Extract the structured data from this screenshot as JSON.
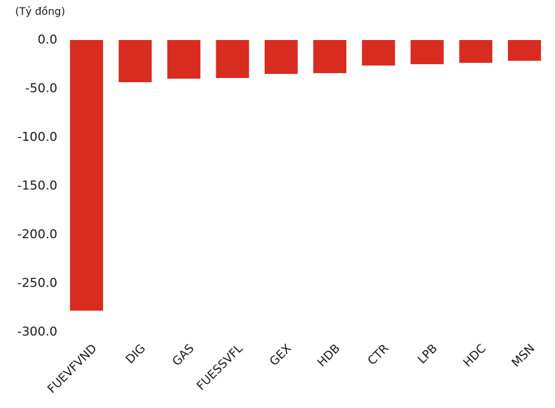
{
  "chart_data": {
    "type": "bar",
    "y_label": "(Tỷ đồng)",
    "categories": [
      "FUEVFVND",
      "DIG",
      "GAS",
      "FUESSVFL",
      "GEX",
      "HDB",
      "CTR",
      "LPB",
      "HDC",
      "MSN"
    ],
    "values": [
      -278,
      -43.3,
      -39.7,
      -39,
      -34.8,
      -34,
      -26.2,
      -24.8,
      -23.4,
      -21.3
    ],
    "color": "#d92c20",
    "ylim": [
      -300,
      0
    ],
    "yticks": [
      {
        "value": 0,
        "label": "0.0"
      },
      {
        "value": -50,
        "label": "-50.0"
      },
      {
        "value": -100,
        "label": "-100.0"
      },
      {
        "value": -150,
        "label": "-150.0"
      },
      {
        "value": -200,
        "label": "-200.0"
      },
      {
        "value": -250,
        "label": "-250.0"
      },
      {
        "value": -300,
        "label": "-300.0"
      }
    ],
    "grid": false
  }
}
